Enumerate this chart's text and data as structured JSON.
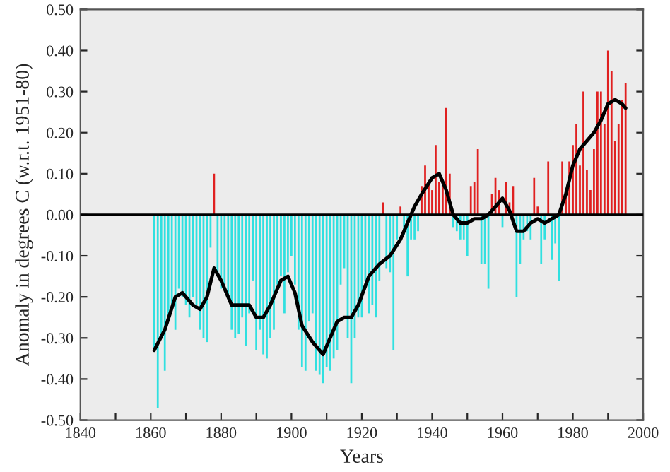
{
  "chart_data": {
    "type": "bar",
    "xlabel": "Years",
    "ylabel": "Anomaly in degrees C (w.r.t. 1951-80)",
    "xlim": [
      1840,
      2000
    ],
    "ylim": [
      -0.5,
      0.5
    ],
    "xticks": [
      1840,
      {
        "value": 1850,
        "label": null
      },
      1860,
      {
        "value": 1870,
        "label": null
      },
      1880,
      {
        "value": 1890,
        "label": null
      },
      1900,
      {
        "value": 1910,
        "label": null
      },
      1920,
      {
        "value": 1930,
        "label": null
      },
      1940,
      {
        "value": 1950,
        "label": null
      },
      1960,
      {
        "value": 1970,
        "label": null
      },
      1980,
      {
        "value": 1990,
        "label": null
      },
      2000
    ],
    "yticks": [
      {
        "value": -0.5,
        "label": "-0.50"
      },
      {
        "value": -0.4,
        "label": "-0.40"
      },
      {
        "value": -0.3,
        "label": "-0.30"
      },
      {
        "value": -0.2,
        "label": "-0.20"
      },
      {
        "value": -0.1,
        "label": "-0.10"
      },
      {
        "value": 0,
        "label": "0.00"
      },
      {
        "value": 0.1,
        "label": "0.10"
      },
      {
        "value": 0.2,
        "label": "0.20"
      },
      {
        "value": 0.3,
        "label": "0.30"
      },
      {
        "value": 0.4,
        "label": "0.40"
      },
      {
        "value": 0.5,
        "label": "0.50"
      }
    ],
    "grid": false,
    "legend": false,
    "ref_lines": [
      {
        "axis": "y",
        "value": 0,
        "color": "#000000"
      }
    ],
    "series": [
      {
        "x": [
          1861,
          1862,
          1863,
          1864,
          1865,
          1866,
          1867,
          1868,
          1869,
          1870,
          1871,
          1872,
          1873,
          1874,
          1875,
          1876,
          1877,
          1878,
          1879,
          1880,
          1881,
          1882,
          1883,
          1884,
          1885,
          1886,
          1887,
          1888,
          1889,
          1890,
          1891,
          1892,
          1893,
          1894,
          1895,
          1896,
          1897,
          1898,
          1899,
          1900,
          1901,
          1902,
          1903,
          1904,
          1905,
          1906,
          1907,
          1908,
          1909,
          1910,
          1911,
          1912,
          1913,
          1914,
          1915,
          1916,
          1917,
          1918,
          1919,
          1920,
          1921,
          1922,
          1923,
          1924,
          1925,
          1926,
          1927,
          1928,
          1929,
          1930,
          1931,
          1932,
          1933,
          1934,
          1935,
          1936,
          1937,
          1938,
          1939,
          1940,
          1941,
          1942,
          1943,
          1944,
          1945,
          1946,
          1947,
          1948,
          1949,
          1950,
          1951,
          1952,
          1953,
          1954,
          1955,
          1956,
          1957,
          1958,
          1959,
          1960,
          1961,
          1962,
          1963,
          1964,
          1965,
          1966,
          1967,
          1968,
          1969,
          1970,
          1971,
          1972,
          1973,
          1974,
          1975,
          1976,
          1977,
          1978,
          1979,
          1980,
          1981,
          1982,
          1983,
          1984,
          1985,
          1986,
          1987,
          1988,
          1989,
          1990,
          1991,
          1992,
          1993,
          1994,
          1995
        ],
        "values": [
          -0.33,
          -0.47,
          -0.3,
          -0.38,
          -0.25,
          -0.22,
          -0.28,
          -0.18,
          -0.2,
          -0.22,
          -0.25,
          -0.2,
          -0.22,
          -0.28,
          -0.3,
          -0.31,
          -0.08,
          0.1,
          -0.15,
          -0.18,
          -0.17,
          -0.2,
          -0.28,
          -0.3,
          -0.29,
          -0.25,
          -0.32,
          -0.24,
          -0.16,
          -0.33,
          -0.28,
          -0.34,
          -0.35,
          -0.3,
          -0.28,
          -0.17,
          -0.15,
          -0.24,
          -0.14,
          -0.1,
          -0.17,
          -0.28,
          -0.37,
          -0.38,
          -0.26,
          -0.24,
          -0.38,
          -0.39,
          -0.41,
          -0.37,
          -0.38,
          -0.35,
          -0.33,
          -0.17,
          -0.13,
          -0.3,
          -0.41,
          -0.3,
          -0.25,
          -0.25,
          -0.16,
          -0.24,
          -0.22,
          -0.25,
          -0.16,
          0.03,
          -0.13,
          -0.14,
          -0.33,
          -0.06,
          0.02,
          -0.05,
          -0.15,
          -0.06,
          -0.06,
          -0.04,
          0.07,
          0.12,
          0.08,
          0.06,
          0.17,
          0.08,
          0.07,
          0.26,
          0.1,
          -0.03,
          -0.04,
          -0.06,
          -0.06,
          -0.1,
          0.07,
          0.08,
          0.16,
          -0.12,
          -0.12,
          -0.18,
          0.05,
          0.09,
          0.06,
          -0.03,
          0.08,
          0.03,
          0.07,
          -0.2,
          -0.12,
          -0.06,
          -0.04,
          -0.06,
          0.09,
          0.02,
          -0.12,
          -0.06,
          0.13,
          -0.11,
          -0.07,
          -0.16,
          0.13,
          0.05,
          0.13,
          0.17,
          0.22,
          0.12,
          0.3,
          0.11,
          0.06,
          0.16,
          0.3,
          0.3,
          0.22,
          0.4,
          0.35,
          0.18,
          0.22,
          0.28,
          0.32
        ],
        "colors": [
          "#30e0e0",
          "#30e0e0",
          "#30e0e0",
          "#30e0e0",
          "#30e0e0",
          "#30e0e0",
          "#30e0e0",
          "#30e0e0",
          "#30e0e0",
          "#30e0e0",
          "#30e0e0",
          "#30e0e0",
          "#30e0e0",
          "#30e0e0",
          "#30e0e0",
          "#30e0e0",
          "#30e0e0",
          "#e02020",
          "#30e0e0",
          "#30e0e0",
          "#30e0e0",
          "#30e0e0",
          "#30e0e0",
          "#30e0e0",
          "#30e0e0",
          "#30e0e0",
          "#30e0e0",
          "#30e0e0",
          "#30e0e0",
          "#30e0e0",
          "#30e0e0",
          "#30e0e0",
          "#30e0e0",
          "#30e0e0",
          "#30e0e0",
          "#30e0e0",
          "#30e0e0",
          "#30e0e0",
          "#30e0e0",
          "#30e0e0",
          "#30e0e0",
          "#30e0e0",
          "#30e0e0",
          "#30e0e0",
          "#30e0e0",
          "#30e0e0",
          "#30e0e0",
          "#30e0e0",
          "#30e0e0",
          "#30e0e0",
          "#30e0e0",
          "#30e0e0",
          "#30e0e0",
          "#30e0e0",
          "#30e0e0",
          "#30e0e0",
          "#30e0e0",
          "#30e0e0",
          "#30e0e0",
          "#30e0e0",
          "#30e0e0",
          "#30e0e0",
          "#30e0e0",
          "#30e0e0",
          "#30e0e0",
          "#e02020",
          "#30e0e0",
          "#30e0e0",
          "#30e0e0",
          "#30e0e0",
          "#e02020",
          "#30e0e0",
          "#30e0e0",
          "#30e0e0",
          "#30e0e0",
          "#30e0e0",
          "#e02020",
          "#e02020",
          "#e02020",
          "#e02020",
          "#e02020",
          "#e02020",
          "#e02020",
          "#e02020",
          "#e02020",
          "#30e0e0",
          "#30e0e0",
          "#30e0e0",
          "#30e0e0",
          "#30e0e0",
          "#e02020",
          "#e02020",
          "#e02020",
          "#30e0e0",
          "#30e0e0",
          "#30e0e0",
          "#e02020",
          "#e02020",
          "#e02020",
          "#30e0e0",
          "#e02020",
          "#e02020",
          "#e02020",
          "#30e0e0",
          "#30e0e0",
          "#30e0e0",
          "#30e0e0",
          "#30e0e0",
          "#e02020",
          "#e02020",
          "#30e0e0",
          "#30e0e0",
          "#e02020",
          "#30e0e0",
          "#30e0e0",
          "#30e0e0",
          "#e02020",
          "#e02020",
          "#e02020",
          "#e02020",
          "#e02020",
          "#e02020",
          "#e02020",
          "#e02020",
          "#e02020",
          "#e02020",
          "#e02020",
          "#e02020",
          "#e02020",
          "#e02020",
          "#e02020",
          "#e02020",
          "#e02020",
          "#e02020",
          "#e02020"
        ]
      },
      {
        "type": "line",
        "color": "#000000",
        "x": [
          1861,
          1864,
          1867,
          1869,
          1872,
          1874,
          1876,
          1878,
          1880,
          1883,
          1886,
          1888,
          1890,
          1892,
          1894,
          1897,
          1899,
          1901,
          1903,
          1906,
          1909,
          1911,
          1913,
          1915,
          1917,
          1919,
          1922,
          1925,
          1928,
          1931,
          1933,
          1935,
          1937,
          1940,
          1942,
          1944,
          1946,
          1948,
          1950,
          1952,
          1954,
          1956,
          1958,
          1960,
          1962,
          1964,
          1966,
          1968,
          1970,
          1972,
          1974,
          1976,
          1978,
          1980,
          1982,
          1984,
          1986,
          1988,
          1990,
          1992,
          1994,
          1995
        ],
        "values": [
          -0.33,
          -0.28,
          -0.2,
          -0.19,
          -0.22,
          -0.23,
          -0.2,
          -0.13,
          -0.16,
          -0.22,
          -0.22,
          -0.22,
          -0.25,
          -0.25,
          -0.22,
          -0.16,
          -0.15,
          -0.19,
          -0.27,
          -0.31,
          -0.34,
          -0.3,
          -0.26,
          -0.25,
          -0.25,
          -0.22,
          -0.15,
          -0.12,
          -0.1,
          -0.06,
          -0.02,
          0.02,
          0.05,
          0.09,
          0.1,
          0.06,
          0.0,
          -0.02,
          -0.02,
          -0.01,
          -0.01,
          0.0,
          0.02,
          0.04,
          0.01,
          -0.04,
          -0.04,
          -0.02,
          -0.01,
          -0.02,
          -0.01,
          0.0,
          0.05,
          0.12,
          0.16,
          0.18,
          0.2,
          0.23,
          0.27,
          0.28,
          0.27,
          0.26
        ]
      }
    ]
  }
}
